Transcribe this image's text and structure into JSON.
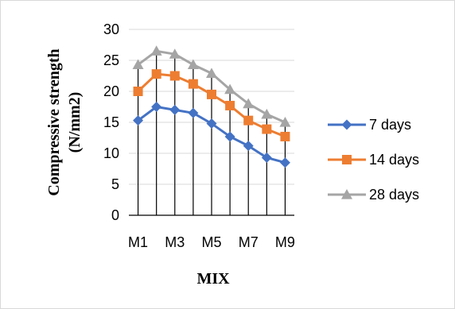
{
  "chart_data": {
    "type": "line",
    "categories": [
      "M1",
      "M2",
      "M3",
      "M4",
      "M5",
      "M6",
      "M7",
      "M8",
      "M9"
    ],
    "tick_labels_x": [
      "M1",
      "M3",
      "M5",
      "M7",
      "M9"
    ],
    "series": [
      {
        "name": "7 days",
        "color": "#4472c4",
        "marker": "diamond",
        "values": [
          15.3,
          17.5,
          17.0,
          16.5,
          14.8,
          12.7,
          11.2,
          9.3,
          8.5
        ]
      },
      {
        "name": "14 days",
        "color": "#ed7d31",
        "marker": "square",
        "values": [
          20.0,
          22.8,
          22.5,
          21.2,
          19.5,
          17.7,
          15.3,
          13.9,
          12.7
        ]
      },
      {
        "name": "28 days",
        "color": "#a5a5a5",
        "marker": "triangle",
        "values": [
          24.3,
          26.5,
          26.0,
          24.3,
          22.9,
          20.3,
          18.0,
          16.3,
          15.0
        ]
      }
    ],
    "xlabel": "MIX",
    "ylabel_line1": "Compressive strength",
    "ylabel_line2": "(N/mm2)",
    "ylim": [
      0,
      30
    ],
    "yticks": [
      0,
      5,
      10,
      15,
      20,
      25,
      30
    ],
    "grid": true,
    "drop_lines": true,
    "legend_position": "right"
  }
}
